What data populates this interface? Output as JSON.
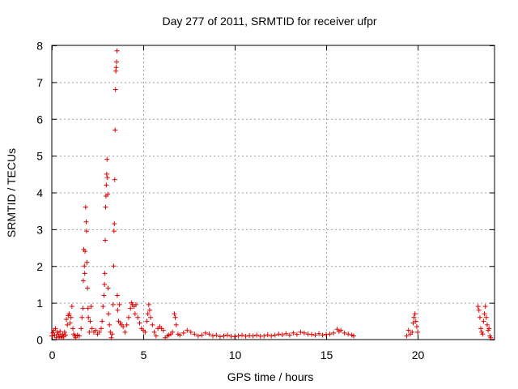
{
  "chart_data": {
    "type": "scatter",
    "title": "Day 277 of 2011, SRMTID for receiver ufpr",
    "xlabel": "GPS time / hours",
    "ylabel": "SRMTID / TECUs",
    "xlim": [
      0,
      24.2
    ],
    "ylim": [
      0,
      8
    ],
    "xticks": [
      0,
      5,
      10,
      15,
      20
    ],
    "yticks": [
      0,
      1,
      2,
      3,
      4,
      5,
      6,
      7,
      8
    ],
    "grid": true,
    "marker": "+",
    "color": "#e00000",
    "series": [
      {
        "points": [
          [
            0.0,
            0.1
          ],
          [
            0.05,
            0.18
          ],
          [
            0.1,
            0.25
          ],
          [
            0.15,
            0.12
          ],
          [
            0.2,
            0.3
          ],
          [
            0.25,
            0.05
          ],
          [
            0.3,
            0.2
          ],
          [
            0.35,
            0.15
          ],
          [
            0.4,
            0.08
          ],
          [
            0.45,
            0.22
          ],
          [
            0.5,
            0.1
          ],
          [
            0.55,
            0.05
          ],
          [
            0.6,
            0.15
          ],
          [
            0.65,
            0.08
          ],
          [
            0.7,
            0.2
          ],
          [
            0.75,
            0.12
          ],
          [
            0.8,
            0.55
          ],
          [
            0.85,
            0.4
          ],
          [
            0.9,
            0.65
          ],
          [
            0.95,
            0.7
          ],
          [
            1.0,
            0.45
          ],
          [
            1.05,
            0.6
          ],
          [
            1.1,
            0.9
          ],
          [
            1.15,
            0.3
          ],
          [
            1.2,
            0.15
          ],
          [
            1.25,
            0.1
          ],
          [
            1.3,
            0.05
          ],
          [
            1.4,
            0.12
          ],
          [
            1.5,
            0.1
          ],
          [
            1.6,
            0.3
          ],
          [
            1.65,
            0.6
          ],
          [
            1.7,
            0.85
          ],
          [
            1.72,
            1.6
          ],
          [
            1.75,
            2.45
          ],
          [
            1.78,
            2.0
          ],
          [
            1.8,
            1.8
          ],
          [
            1.82,
            2.4
          ],
          [
            1.85,
            3.6
          ],
          [
            1.88,
            3.2
          ],
          [
            1.9,
            2.95
          ],
          [
            1.92,
            2.1
          ],
          [
            1.95,
            1.4
          ],
          [
            1.98,
            0.85
          ],
          [
            2.0,
            0.6
          ],
          [
            2.05,
            0.2
          ],
          [
            2.1,
            0.5
          ],
          [
            2.15,
            0.9
          ],
          [
            2.2,
            0.3
          ],
          [
            2.3,
            0.2
          ],
          [
            2.4,
            0.25
          ],
          [
            2.5,
            0.15
          ],
          [
            2.6,
            0.2
          ],
          [
            2.7,
            0.3
          ],
          [
            2.75,
            0.5
          ],
          [
            2.8,
            0.9
          ],
          [
            2.85,
            1.2
          ],
          [
            2.88,
            1.5
          ],
          [
            2.9,
            1.8
          ],
          [
            2.92,
            2.7
          ],
          [
            2.94,
            3.6
          ],
          [
            2.96,
            3.9
          ],
          [
            2.98,
            4.2
          ],
          [
            3.0,
            4.5
          ],
          [
            3.02,
            4.9
          ],
          [
            3.04,
            4.4
          ],
          [
            3.06,
            3.95
          ],
          [
            3.08,
            1.4
          ],
          [
            3.1,
            0.7
          ],
          [
            3.15,
            0.4
          ],
          [
            3.2,
            0.2
          ],
          [
            3.25,
            0.05
          ],
          [
            3.3,
            0.15
          ],
          [
            3.35,
            0.95
          ],
          [
            3.38,
            2.0
          ],
          [
            3.4,
            2.95
          ],
          [
            3.42,
            3.15
          ],
          [
            3.44,
            4.35
          ],
          [
            3.46,
            5.7
          ],
          [
            3.48,
            6.8
          ],
          [
            3.5,
            7.3
          ],
          [
            3.52,
            7.4
          ],
          [
            3.54,
            7.55
          ],
          [
            3.56,
            7.85
          ],
          [
            3.58,
            1.2
          ],
          [
            3.6,
            0.8
          ],
          [
            3.65,
            0.5
          ],
          [
            3.7,
            0.95
          ],
          [
            3.75,
            0.45
          ],
          [
            3.8,
            0.4
          ],
          [
            3.9,
            0.35
          ],
          [
            4.0,
            0.2
          ],
          [
            4.1,
            0.4
          ],
          [
            4.2,
            0.6
          ],
          [
            4.3,
            0.85
          ],
          [
            4.35,
            1.0
          ],
          [
            4.4,
            0.95
          ],
          [
            4.5,
            0.9
          ],
          [
            4.55,
            0.7
          ],
          [
            4.6,
            0.95
          ],
          [
            4.7,
            0.6
          ],
          [
            4.8,
            0.45
          ],
          [
            4.9,
            0.3
          ],
          [
            5.0,
            0.25
          ],
          [
            5.1,
            0.2
          ],
          [
            5.2,
            0.5
          ],
          [
            5.25,
            0.7
          ],
          [
            5.3,
            0.95
          ],
          [
            5.35,
            0.8
          ],
          [
            5.4,
            0.6
          ],
          [
            5.5,
            0.4
          ],
          [
            5.6,
            0.2
          ],
          [
            5.7,
            0.1
          ],
          [
            5.8,
            0.3
          ],
          [
            5.9,
            0.35
          ],
          [
            6.0,
            0.3
          ],
          [
            6.1,
            0.25
          ],
          [
            6.2,
            0.05
          ],
          [
            6.3,
            0.1
          ],
          [
            6.4,
            0.12
          ],
          [
            6.5,
            0.15
          ],
          [
            6.6,
            0.2
          ],
          [
            6.7,
            0.7
          ],
          [
            6.75,
            0.6
          ],
          [
            6.8,
            0.4
          ],
          [
            6.9,
            0.15
          ],
          [
            7.0,
            0.12
          ],
          [
            7.2,
            0.18
          ],
          [
            7.4,
            0.25
          ],
          [
            7.6,
            0.2
          ],
          [
            7.8,
            0.15
          ],
          [
            8.0,
            0.1
          ],
          [
            8.2,
            0.12
          ],
          [
            8.4,
            0.18
          ],
          [
            8.6,
            0.15
          ],
          [
            8.8,
            0.1
          ],
          [
            9.0,
            0.12
          ],
          [
            9.2,
            0.08
          ],
          [
            9.4,
            0.1
          ],
          [
            9.6,
            0.12
          ],
          [
            9.8,
            0.09
          ],
          [
            10.0,
            0.08
          ],
          [
            10.2,
            0.1
          ],
          [
            10.4,
            0.12
          ],
          [
            10.6,
            0.09
          ],
          [
            10.8,
            0.11
          ],
          [
            11.0,
            0.1
          ],
          [
            11.2,
            0.12
          ],
          [
            11.4,
            0.09
          ],
          [
            11.6,
            0.1
          ],
          [
            11.8,
            0.13
          ],
          [
            12.0,
            0.1
          ],
          [
            12.2,
            0.12
          ],
          [
            12.4,
            0.15
          ],
          [
            12.6,
            0.13
          ],
          [
            12.8,
            0.16
          ],
          [
            13.0,
            0.12
          ],
          [
            13.2,
            0.18
          ],
          [
            13.4,
            0.14
          ],
          [
            13.6,
            0.2
          ],
          [
            13.8,
            0.18
          ],
          [
            14.0,
            0.15
          ],
          [
            14.2,
            0.14
          ],
          [
            14.4,
            0.12
          ],
          [
            14.6,
            0.16
          ],
          [
            14.8,
            0.12
          ],
          [
            15.0,
            0.14
          ],
          [
            15.2,
            0.15
          ],
          [
            15.4,
            0.18
          ],
          [
            15.6,
            0.28
          ],
          [
            15.7,
            0.22
          ],
          [
            15.8,
            0.25
          ],
          [
            16.0,
            0.18
          ],
          [
            16.2,
            0.15
          ],
          [
            16.4,
            0.12
          ],
          [
            16.5,
            0.1
          ],
          [
            19.4,
            0.1
          ],
          [
            19.5,
            0.25
          ],
          [
            19.6,
            0.15
          ],
          [
            19.7,
            0.2
          ],
          [
            19.75,
            0.45
          ],
          [
            19.8,
            0.6
          ],
          [
            19.85,
            0.7
          ],
          [
            19.9,
            0.5
          ],
          [
            19.95,
            0.35
          ],
          [
            20.0,
            0.2
          ],
          [
            23.3,
            0.9
          ],
          [
            23.35,
            0.8
          ],
          [
            23.4,
            0.6
          ],
          [
            23.45,
            0.3
          ],
          [
            23.5,
            0.2
          ],
          [
            23.55,
            0.15
          ],
          [
            23.6,
            0.5
          ],
          [
            23.65,
            0.7
          ],
          [
            23.7,
            0.9
          ],
          [
            23.75,
            0.6
          ],
          [
            23.8,
            0.4
          ],
          [
            23.85,
            0.25
          ],
          [
            23.9,
            0.3
          ],
          [
            23.95,
            0.1
          ],
          [
            24.0,
            0.05
          ]
        ]
      }
    ]
  }
}
